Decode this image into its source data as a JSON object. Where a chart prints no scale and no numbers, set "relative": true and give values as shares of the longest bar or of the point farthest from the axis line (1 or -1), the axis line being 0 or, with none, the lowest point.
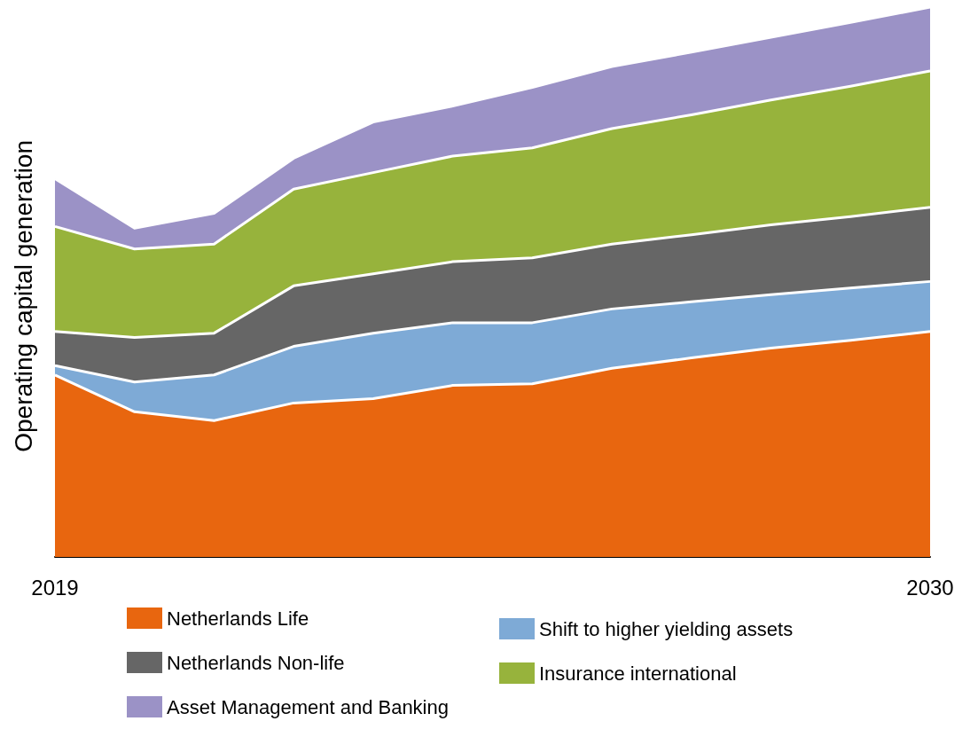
{
  "chart_data": {
    "type": "area",
    "ylabel": "Operating capital generation",
    "relative": true,
    "stacked": true,
    "legend": "bottom",
    "categories": [
      "2019",
      null,
      null,
      null,
      null,
      null,
      null,
      null,
      null,
      null,
      null,
      "2030"
    ],
    "series": [
      {
        "name": "Netherlands Life",
        "color": "#e8660f",
        "values": [
          0.331,
          0.264,
          0.248,
          0.28,
          0.288,
          0.312,
          0.315,
          0.343,
          0.362,
          0.38,
          0.394,
          0.41
        ]
      },
      {
        "name": "Shift to higher yielding assets",
        "color": "#7eaad6",
        "values": [
          0.017,
          0.054,
          0.083,
          0.103,
          0.119,
          0.114,
          0.111,
          0.108,
          0.102,
          0.097,
          0.095,
          0.091
        ]
      },
      {
        "name": "Netherlands Non-life",
        "color": "#666666",
        "values": [
          0.062,
          0.081,
          0.076,
          0.11,
          0.108,
          0.111,
          0.118,
          0.118,
          0.122,
          0.127,
          0.13,
          0.135
        ]
      },
      {
        "name": "Insurance international",
        "color": "#97b33c",
        "values": [
          0.191,
          0.161,
          0.162,
          0.176,
          0.184,
          0.192,
          0.2,
          0.21,
          0.218,
          0.227,
          0.237,
          0.248
        ]
      },
      {
        "name": "Asset Management and Banking",
        "color": "#9b92c6",
        "values": [
          0.087,
          0.038,
          0.056,
          0.056,
          0.092,
          0.091,
          0.11,
          0.113,
          0.114,
          0.114,
          0.116,
          0.116
        ]
      }
    ]
  }
}
